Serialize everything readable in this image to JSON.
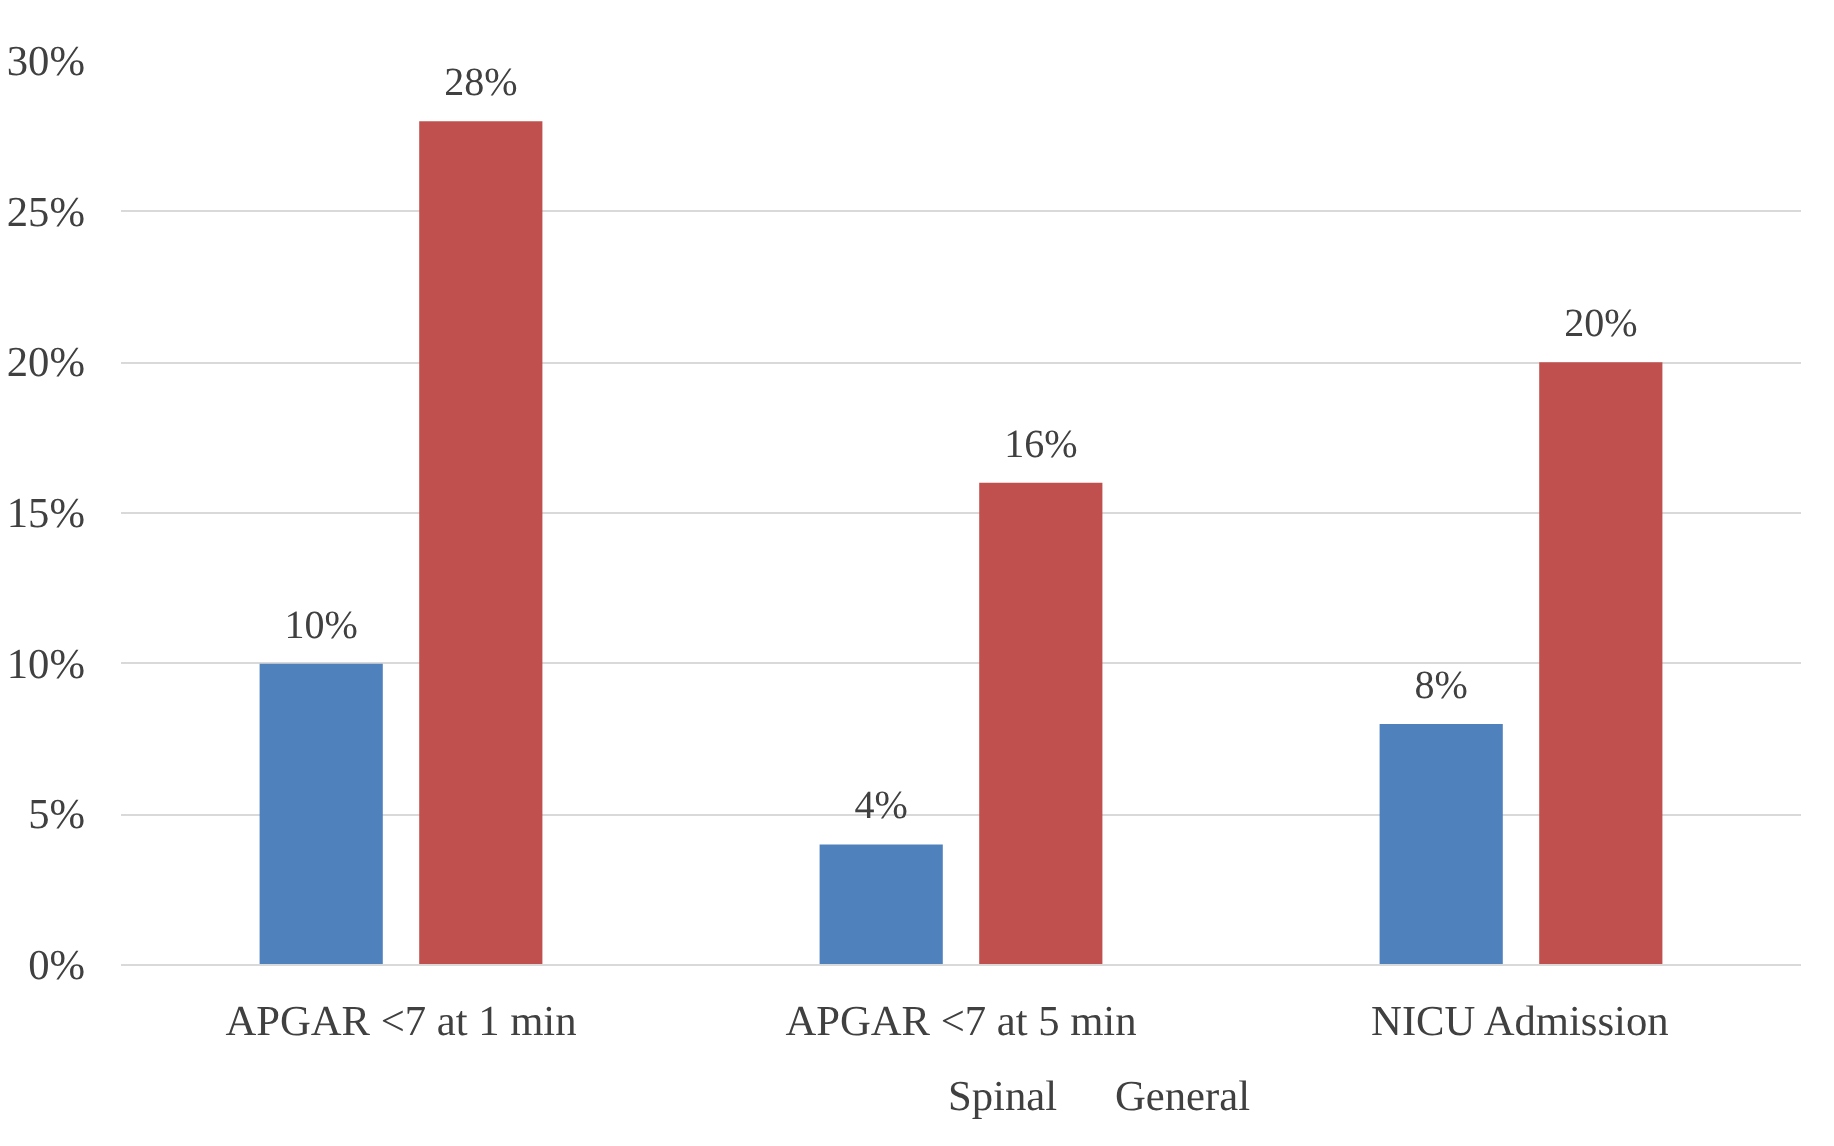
{
  "chart_data": {
    "type": "bar",
    "categories": [
      "APGAR <7 at 1 min",
      "APGAR <7 at 5 min",
      "NICU Admission"
    ],
    "series": [
      {
        "name": "Spinal",
        "color": "#4f81bd",
        "values": [
          10,
          4,
          8
        ],
        "value_labels": [
          "10%",
          "4%",
          "8%"
        ]
      },
      {
        "name": "General",
        "color": "#c0504d",
        "values": [
          28,
          16,
          20
        ],
        "value_labels": [
          "28%",
          "16%",
          "20%"
        ]
      }
    ],
    "ylim": [
      0,
      30
    ],
    "yticks": [
      {
        "value": 0,
        "label": "0%"
      },
      {
        "value": 5,
        "label": "5%"
      },
      {
        "value": 10,
        "label": "10%"
      },
      {
        "value": 15,
        "label": "15%"
      },
      {
        "value": 20,
        "label": "20%"
      },
      {
        "value": 25,
        "label": "25%"
      },
      {
        "value": 30,
        "label": "30%"
      }
    ],
    "grid": "y",
    "legend": "bottom"
  }
}
